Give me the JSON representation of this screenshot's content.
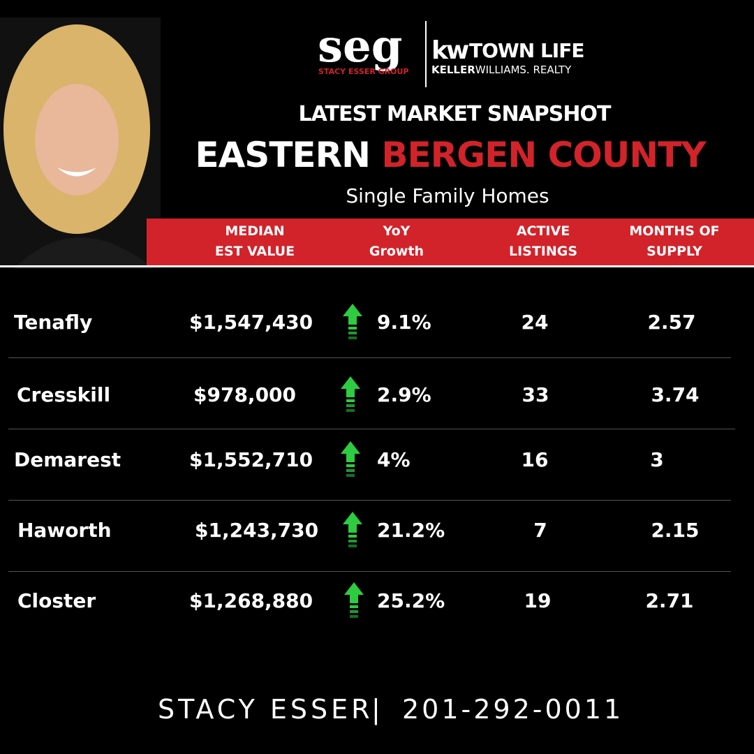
{
  "logo": {
    "seg": "seg",
    "group": "STACY ESSER GROUP",
    "kw": "kw",
    "town": "TOWN LIFE",
    "keller": "KELLER",
    "williams": "WILLIAMS. REALTY"
  },
  "header": {
    "kicker": "LATEST MARKET SNAPSHOT",
    "title_white": "EASTERN",
    "title_red": "BERGEN COUNTY",
    "subtitle": "Single Family Homes"
  },
  "table": {
    "headers": [
      [
        "MEDIAN",
        "EST VALUE"
      ],
      [
        "YoY",
        "Growth"
      ],
      [
        "ACTIVE",
        "LISTINGS"
      ],
      [
        "MONTHS OF",
        "SUPPLY"
      ]
    ],
    "rows": [
      [
        "Tenafly",
        "$1,547,430",
        "9.1%",
        "24",
        "2.57"
      ],
      [
        "Cresskill",
        "$978,000",
        "2.9%",
        "33",
        "3.74"
      ],
      [
        "Demarest",
        "$1,552,710",
        "4%",
        "16",
        "3"
      ],
      [
        "Haworth",
        "$1,243,730",
        "21.2%",
        "7",
        "2.15"
      ],
      [
        "Closter",
        "$1,268,880",
        "25.2%",
        "19",
        "2.71"
      ]
    ]
  },
  "footer": {
    "name": "STACY ESSER",
    "separator": "|",
    "phone": "201-292-0011"
  }
}
